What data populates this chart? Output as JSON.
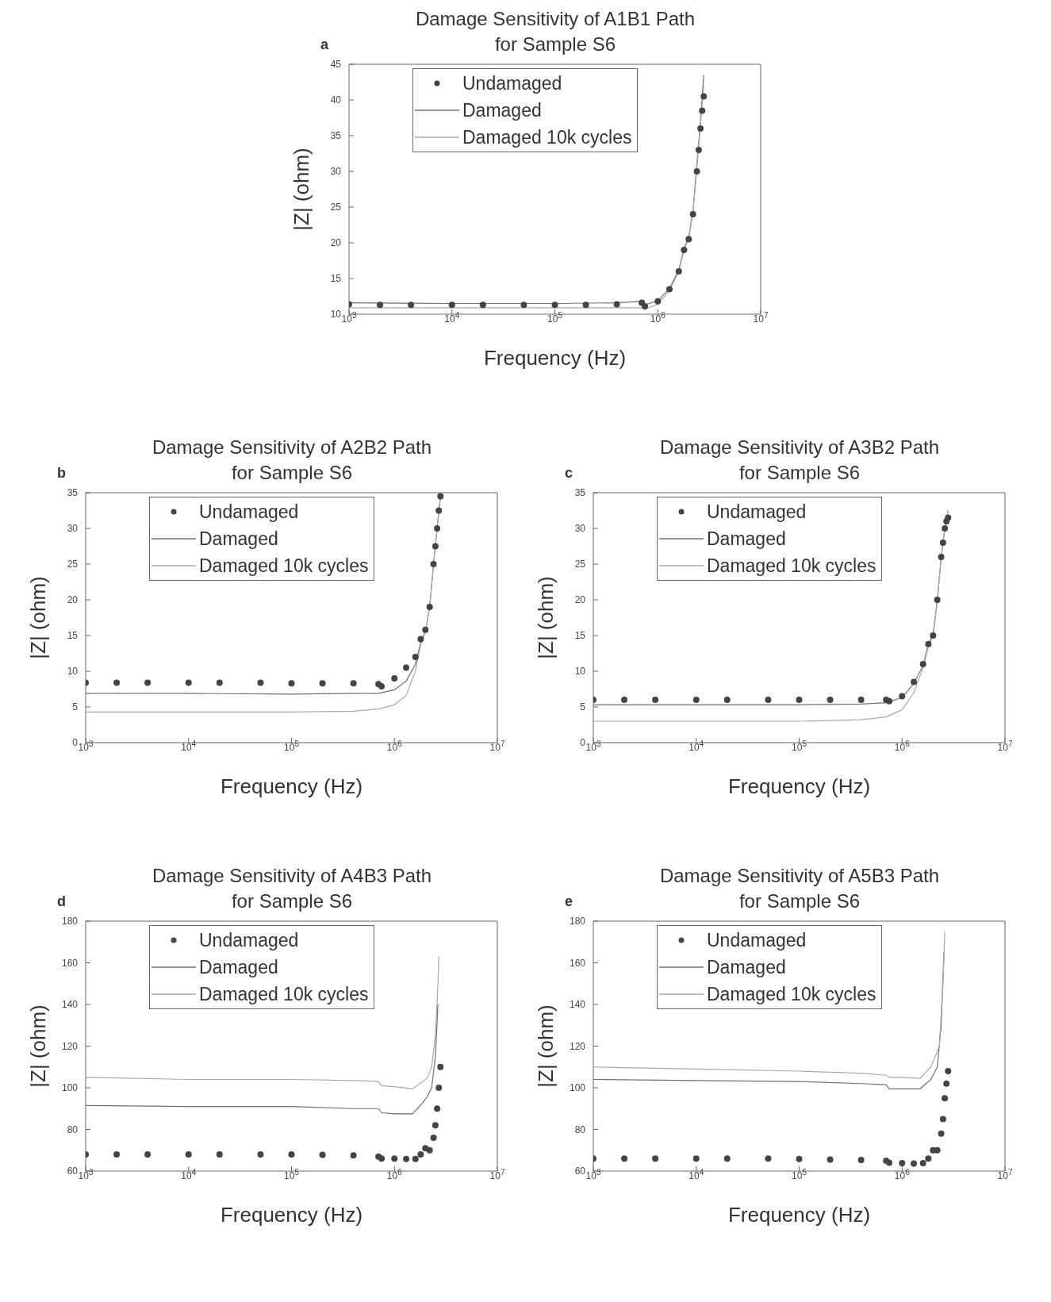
{
  "chart_data": [
    {
      "type": "line",
      "title": "Damage Sensitivity of A1B1 Path\nfor Sample S6",
      "xlabel": "Frequency (Hz)",
      "ylabel": "|Z| (ohm)",
      "annotations": [
        "a"
      ],
      "log": "x",
      "legend": "top left",
      "xlim": [
        1000,
        10000000
      ],
      "xticks": [
        {
          "value": 1000,
          "label": "10$^{3}$"
        },
        {
          "value": 10000,
          "label": "10$^{4}$"
        },
        {
          "value": 100000,
          "label": "10$^{5}$"
        },
        {
          "value": 1000000,
          "label": "10$^{6}$"
        },
        {
          "value": 10000000,
          "label": "10$^{7}$"
        }
      ],
      "ylim": [
        10,
        45
      ],
      "yticks": [
        10,
        15,
        20,
        25,
        30,
        35,
        40,
        45
      ],
      "series": [
        {
          "name": "Undamaged",
          "type": "scatter",
          "marker": "circle",
          "color": "#444444",
          "x": [
            1000,
            2000,
            4000,
            10000,
            20000,
            50000,
            100000,
            200000,
            400000,
            700000,
            750000,
            1000000,
            1300000,
            1600000,
            1800000,
            2000000,
            2200000,
            2400000,
            2500000,
            2600000,
            2700000,
            2800000
          ],
          "values": [
            11.4,
            11.3,
            11.3,
            11.3,
            11.3,
            11.3,
            11.3,
            11.3,
            11.4,
            11.6,
            11.1,
            11.8,
            13.5,
            16,
            19,
            20.5,
            24,
            30,
            33,
            36,
            38.5,
            40.5
          ]
        },
        {
          "name": "Damaged",
          "marker": "none",
          "color": "#707070",
          "x": [
            1000,
            10000,
            100000,
            400000,
            700000,
            750000,
            1000000,
            1300000,
            1600000,
            1800000,
            2000000,
            2200000,
            2400000,
            2600000,
            2800000
          ],
          "values": [
            11.6,
            11.5,
            11.5,
            11.6,
            11.8,
            11.3,
            11.9,
            13.6,
            16.2,
            19.2,
            20.8,
            24.5,
            31,
            37,
            43.5
          ]
        },
        {
          "name": "Damaged 10k cycles",
          "marker": "none",
          "color": "#a8a8a8",
          "x": [
            1000,
            10000,
            100000,
            400000,
            700000,
            750000,
            1000000,
            1300000,
            1600000,
            1800000,
            2000000,
            2200000,
            2400000,
            2600000,
            2800000
          ],
          "values": [
            10.9,
            10.9,
            10.9,
            10.9,
            10.9,
            10.7,
            11.4,
            13.3,
            16,
            19,
            20.6,
            24.3,
            30.5,
            36.5,
            42
          ]
        }
      ]
    },
    {
      "type": "line",
      "title": "Damage Sensitivity of A2B2 Path\nfor Sample S6",
      "xlabel": "Frequency (Hz)",
      "ylabel": "|Z| (ohm)",
      "annotations": [
        "b"
      ],
      "log": "x",
      "legend": "top left",
      "xlim": [
        1000,
        10000000
      ],
      "xticks": [
        {
          "value": 1000,
          "label": "10$^{3}$"
        },
        {
          "value": 10000,
          "label": "10$^{4}$"
        },
        {
          "value": 100000,
          "label": "10$^{5}$"
        },
        {
          "value": 1000000,
          "label": "10$^{6}$"
        },
        {
          "value": 10000000,
          "label": "10$^{7}$"
        }
      ],
      "ylim": [
        0,
        35
      ],
      "yticks": [
        0,
        5,
        10,
        15,
        20,
        25,
        30,
        35
      ],
      "series": [
        {
          "name": "Undamaged",
          "type": "scatter",
          "marker": "circle",
          "color": "#444444",
          "x": [
            1000,
            2000,
            4000,
            10000,
            20000,
            50000,
            100000,
            200000,
            400000,
            700000,
            750000,
            1000000,
            1300000,
            1600000,
            1800000,
            2000000,
            2200000,
            2400000,
            2500000,
            2600000,
            2700000,
            2800000
          ],
          "values": [
            8.4,
            8.4,
            8.4,
            8.4,
            8.4,
            8.4,
            8.3,
            8.3,
            8.3,
            8.2,
            7.9,
            9,
            10.5,
            12,
            14.5,
            15.8,
            19,
            25,
            27.5,
            30,
            32.5,
            34.5
          ]
        },
        {
          "name": "Damaged",
          "marker": "none",
          "color": "#707070",
          "x": [
            1000,
            10000,
            100000,
            400000,
            700000,
            1000000,
            1300000,
            1600000,
            1800000,
            2000000,
            2200000,
            2400000,
            2600000,
            2800000
          ],
          "values": [
            6.9,
            6.9,
            6.8,
            6.9,
            6.9,
            7.4,
            8.6,
            11,
            14,
            15.6,
            19,
            25,
            30,
            34.5
          ]
        },
        {
          "name": "Damaged 10k cycles",
          "marker": "none",
          "color": "#a8a8a8",
          "x": [
            1000,
            10000,
            100000,
            400000,
            700000,
            1000000,
            1300000,
            1600000,
            1800000,
            2000000,
            2200000,
            2400000,
            2600000,
            2800000
          ],
          "values": [
            4.3,
            4.3,
            4.3,
            4.4,
            4.7,
            5.3,
            6.6,
            10,
            13.8,
            15.5,
            19,
            25,
            30,
            34.5
          ]
        }
      ]
    },
    {
      "type": "line",
      "title": "Damage Sensitivity of A3B2 Path\nfor Sample S6",
      "xlabel": "Frequency (Hz)",
      "ylabel": "|Z| (ohm)",
      "annotations": [
        "c"
      ],
      "log": "x",
      "legend": "top left",
      "xlim": [
        1000,
        10000000
      ],
      "xticks": [
        {
          "value": 1000,
          "label": "10$^{3}$"
        },
        {
          "value": 10000,
          "label": "10$^{4}$"
        },
        {
          "value": 100000,
          "label": "10$^{5}$"
        },
        {
          "value": 1000000,
          "label": "10$^{6}$"
        },
        {
          "value": 10000000,
          "label": "10$^{7}$"
        }
      ],
      "ylim": [
        0,
        35
      ],
      "yticks": [
        0,
        5,
        10,
        15,
        20,
        25,
        30,
        35
      ],
      "series": [
        {
          "name": "Undamaged",
          "type": "scatter",
          "marker": "circle",
          "color": "#444444",
          "x": [
            1000,
            2000,
            4000,
            10000,
            20000,
            50000,
            100000,
            200000,
            400000,
            700000,
            750000,
            1000000,
            1300000,
            1600000,
            1800000,
            2000000,
            2200000,
            2400000,
            2500000,
            2600000,
            2700000,
            2800000
          ],
          "values": [
            6,
            6,
            6,
            6,
            6,
            6,
            6,
            6,
            6,
            6,
            5.8,
            6.5,
            8.5,
            11,
            13.8,
            15,
            20,
            26,
            28,
            30,
            31,
            31.5
          ]
        },
        {
          "name": "Damaged",
          "marker": "none",
          "color": "#707070",
          "x": [
            1000,
            10000,
            100000,
            400000,
            700000,
            1000000,
            1300000,
            1600000,
            1800000,
            2000000,
            2200000,
            2400000,
            2600000,
            2800000
          ],
          "values": [
            5.3,
            5.3,
            5.3,
            5.4,
            5.6,
            6.3,
            8.3,
            10.8,
            13.8,
            15.2,
            20,
            26,
            30,
            32.5
          ]
        },
        {
          "name": "Damaged 10k cycles",
          "marker": "none",
          "color": "#a8a8a8",
          "x": [
            1000,
            10000,
            100000,
            400000,
            700000,
            1000000,
            1300000,
            1600000,
            1800000,
            2000000,
            2200000,
            2400000,
            2600000,
            2800000
          ],
          "values": [
            3,
            3,
            3,
            3.2,
            3.6,
            4.6,
            7,
            10.5,
            13.5,
            15,
            19.8,
            26,
            30,
            32.5
          ]
        }
      ]
    },
    {
      "type": "line",
      "title": "Damage Sensitivity of A4B3 Path\nfor Sample S6",
      "xlabel": "Frequency (Hz)",
      "ylabel": "|Z| (ohm)",
      "annotations": [
        "d"
      ],
      "log": "x",
      "legend": "top left",
      "xlim": [
        1000,
        10000000
      ],
      "xticks": [
        {
          "value": 1000,
          "label": "10$^{3}$"
        },
        {
          "value": 10000,
          "label": "10$^{4}$"
        },
        {
          "value": 100000,
          "label": "10$^{5}$"
        },
        {
          "value": 1000000,
          "label": "10$^{6}$"
        },
        {
          "value": 10000000,
          "label": "10$^{7}$"
        }
      ],
      "ylim": [
        60,
        180
      ],
      "yticks": [
        60,
        80,
        100,
        120,
        140,
        160,
        180
      ],
      "series": [
        {
          "name": "Undamaged",
          "type": "scatter",
          "marker": "circle",
          "color": "#444444",
          "x": [
            1000,
            2000,
            4000,
            10000,
            20000,
            50000,
            100000,
            200000,
            400000,
            700000,
            750000,
            1000000,
            1300000,
            1600000,
            1800000,
            2000000,
            2200000,
            2400000,
            2500000,
            2600000,
            2700000,
            2800000
          ],
          "values": [
            68,
            68,
            68,
            68,
            68,
            68,
            68,
            67.8,
            67.5,
            67,
            66,
            66,
            65.8,
            65.8,
            68,
            71,
            70,
            76,
            82,
            90,
            100,
            110
          ]
        },
        {
          "name": "Damaged",
          "marker": "none",
          "color": "#707070",
          "x": [
            1000,
            10000,
            100000,
            400000,
            700000,
            750000,
            1000000,
            1500000,
            1900000,
            2100000,
            2300000,
            2500000,
            2650000
          ],
          "values": [
            91.5,
            91,
            91,
            90,
            90,
            88,
            87.5,
            87.5,
            93,
            96,
            100,
            115,
            140
          ]
        },
        {
          "name": "Damaged 10k cycles",
          "marker": "none",
          "color": "#a8a8a8",
          "x": [
            1000,
            10000,
            100000,
            400000,
            700000,
            750000,
            1000000,
            1500000,
            1900000,
            2100000,
            2300000,
            2500000,
            2650000,
            2700000
          ],
          "values": [
            105,
            104,
            104,
            103.5,
            103,
            101,
            100.5,
            99.5,
            103,
            105,
            110,
            125,
            150,
            163
          ]
        }
      ]
    },
    {
      "type": "line",
      "title": "Damage Sensitivity of A5B3 Path\nfor Sample S6",
      "xlabel": "Frequency (Hz)",
      "ylabel": "|Z| (ohm)",
      "annotations": [
        "e"
      ],
      "log": "x",
      "legend": "top left",
      "xlim": [
        1000,
        10000000
      ],
      "xticks": [
        {
          "value": 1000,
          "label": "10$^{3}$"
        },
        {
          "value": 10000,
          "label": "10$^{4}$"
        },
        {
          "value": 100000,
          "label": "10$^{5}$"
        },
        {
          "value": 1000000,
          "label": "10$^{6}$"
        },
        {
          "value": 10000000,
          "label": "10$^{7}$"
        }
      ],
      "ylim": [
        60,
        180
      ],
      "yticks": [
        60,
        80,
        100,
        120,
        140,
        160,
        180
      ],
      "series": [
        {
          "name": "Undamaged",
          "type": "scatter",
          "marker": "circle",
          "color": "#444444",
          "x": [
            1000,
            2000,
            4000,
            10000,
            20000,
            50000,
            100000,
            200000,
            400000,
            700000,
            750000,
            1000000,
            1300000,
            1600000,
            1800000,
            2000000,
            2200000,
            2400000,
            2500000,
            2600000,
            2700000,
            2800000
          ],
          "values": [
            66,
            66,
            66,
            66,
            66,
            66,
            65.8,
            65.5,
            65.3,
            65,
            64,
            63.8,
            63.6,
            63.8,
            66,
            70,
            70,
            78,
            85,
            95,
            102,
            108
          ]
        },
        {
          "name": "Damaged",
          "marker": "none",
          "color": "#707070",
          "x": [
            1000,
            10000,
            100000,
            400000,
            700000,
            750000,
            1000000,
            1500000,
            1900000,
            2200000,
            2400000,
            2550000
          ],
          "values": [
            104,
            103.5,
            103,
            102,
            101.5,
            99.5,
            99.5,
            99.5,
            104,
            110,
            130,
            165
          ]
        },
        {
          "name": "Damaged 10k cycles",
          "marker": "none",
          "color": "#a8a8a8",
          "x": [
            1000,
            10000,
            100000,
            400000,
            700000,
            750000,
            1000000,
            1500000,
            1900000,
            2100000,
            2300000,
            2500000,
            2600000
          ],
          "values": [
            110,
            109,
            108,
            107,
            106,
            105,
            105,
            104.5,
            110,
            115,
            120,
            150,
            175
          ]
        }
      ]
    }
  ]
}
